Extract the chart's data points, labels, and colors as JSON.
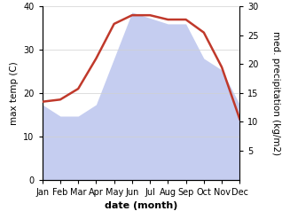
{
  "months": [
    "Jan",
    "Feb",
    "Mar",
    "Apr",
    "May",
    "Jun",
    "Jul",
    "Aug",
    "Sep",
    "Oct",
    "Nov",
    "Dec"
  ],
  "temperature": [
    18,
    18.5,
    21,
    28,
    36,
    38,
    38,
    37,
    37,
    34,
    26,
    14
  ],
  "precipitation": [
    13,
    11,
    11,
    13,
    21,
    29,
    28,
    27,
    27,
    21,
    19,
    13
  ],
  "temp_color": "#c0392b",
  "precip_color": "#c5cdf0",
  "background_color": "#ffffff",
  "xlabel": "date (month)",
  "ylabel_left": "max temp (C)",
  "ylabel_right": "med. precipitation (kg/m2)",
  "ylim_left": [
    0,
    40
  ],
  "ylim_right": [
    0,
    30
  ],
  "yticks_left": [
    0,
    10,
    20,
    30,
    40
  ],
  "yticks_right": [
    5,
    10,
    15,
    20,
    25,
    30
  ],
  "temp_linewidth": 1.8,
  "xlabel_fontsize": 8,
  "ylabel_fontsize": 7.5,
  "tick_fontsize": 7
}
